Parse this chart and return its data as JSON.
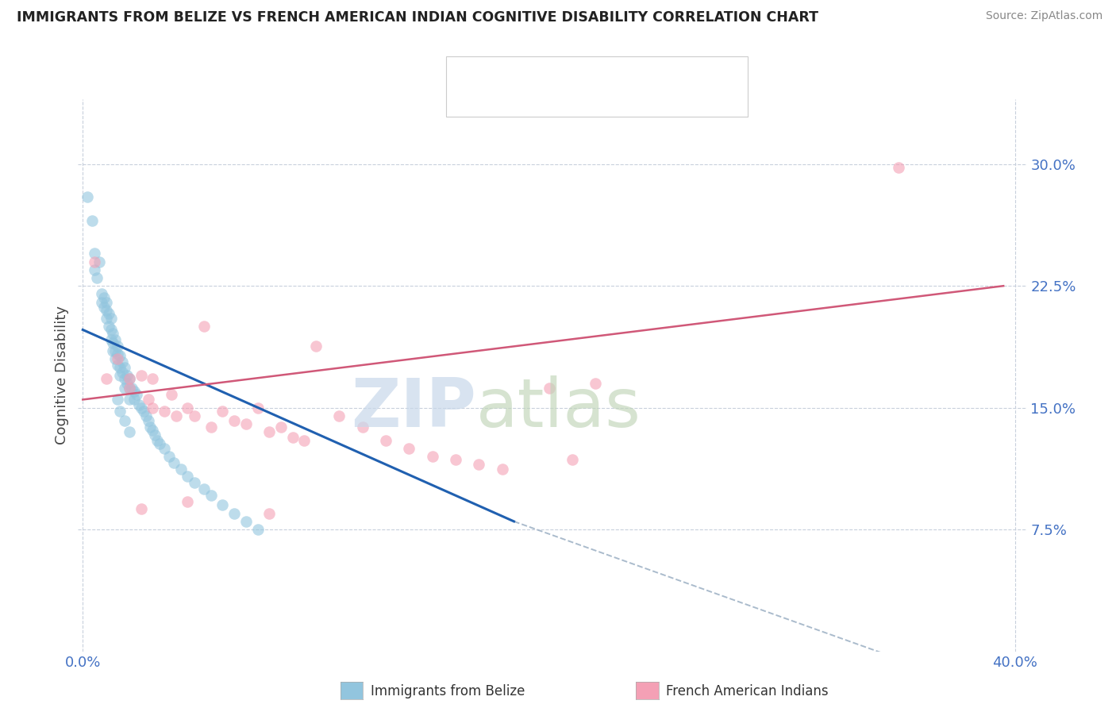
{
  "title": "IMMIGRANTS FROM BELIZE VS FRENCH AMERICAN INDIAN COGNITIVE DISABILITY CORRELATION CHART",
  "source": "Source: ZipAtlas.com",
  "ylabel": "Cognitive Disability",
  "ytick_labels": [
    "7.5%",
    "15.0%",
    "22.5%",
    "30.0%"
  ],
  "ytick_values": [
    0.075,
    0.15,
    0.225,
    0.3
  ],
  "xlim": [
    -0.002,
    0.405
  ],
  "ylim": [
    0.0,
    0.34
  ],
  "label1": "Immigrants from Belize",
  "label2": "French American Indians",
  "color1": "#92c5de",
  "color2": "#f4a0b5",
  "line_color1": "#2060b0",
  "line_color2": "#d05878",
  "blue_scatter_x": [
    0.002,
    0.004,
    0.005,
    0.005,
    0.006,
    0.007,
    0.008,
    0.008,
    0.009,
    0.009,
    0.01,
    0.01,
    0.01,
    0.011,
    0.011,
    0.012,
    0.012,
    0.012,
    0.013,
    0.013,
    0.013,
    0.014,
    0.014,
    0.014,
    0.015,
    0.015,
    0.015,
    0.016,
    0.016,
    0.016,
    0.017,
    0.017,
    0.018,
    0.018,
    0.018,
    0.019,
    0.019,
    0.02,
    0.02,
    0.02,
    0.021,
    0.022,
    0.022,
    0.023,
    0.024,
    0.025,
    0.026,
    0.027,
    0.028,
    0.029,
    0.03,
    0.031,
    0.032,
    0.033,
    0.035,
    0.037,
    0.039,
    0.042,
    0.045,
    0.048,
    0.052,
    0.055,
    0.06,
    0.065,
    0.07,
    0.075,
    0.015,
    0.016,
    0.018,
    0.02
  ],
  "blue_scatter_y": [
    0.28,
    0.265,
    0.245,
    0.235,
    0.23,
    0.24,
    0.22,
    0.215,
    0.218,
    0.212,
    0.215,
    0.21,
    0.205,
    0.208,
    0.2,
    0.205,
    0.198,
    0.192,
    0.196,
    0.19,
    0.185,
    0.192,
    0.185,
    0.18,
    0.188,
    0.183,
    0.176,
    0.182,
    0.175,
    0.17,
    0.178,
    0.172,
    0.175,
    0.168,
    0.162,
    0.17,
    0.165,
    0.168,
    0.162,
    0.155,
    0.162,
    0.16,
    0.155,
    0.158,
    0.152,
    0.15,
    0.148,
    0.145,
    0.142,
    0.138,
    0.136,
    0.133,
    0.13,
    0.128,
    0.125,
    0.12,
    0.116,
    0.112,
    0.108,
    0.104,
    0.1,
    0.096,
    0.09,
    0.085,
    0.08,
    0.075,
    0.155,
    0.148,
    0.142,
    0.135
  ],
  "pink_scatter_x": [
    0.005,
    0.01,
    0.015,
    0.02,
    0.02,
    0.025,
    0.028,
    0.03,
    0.03,
    0.035,
    0.038,
    0.04,
    0.045,
    0.048,
    0.052,
    0.055,
    0.06,
    0.065,
    0.07,
    0.075,
    0.08,
    0.085,
    0.09,
    0.095,
    0.1,
    0.11,
    0.12,
    0.13,
    0.14,
    0.15,
    0.16,
    0.17,
    0.18,
    0.2,
    0.21,
    0.22,
    0.025,
    0.045,
    0.08,
    0.35
  ],
  "pink_scatter_y": [
    0.24,
    0.168,
    0.18,
    0.162,
    0.168,
    0.17,
    0.155,
    0.15,
    0.168,
    0.148,
    0.158,
    0.145,
    0.15,
    0.145,
    0.2,
    0.138,
    0.148,
    0.142,
    0.14,
    0.15,
    0.135,
    0.138,
    0.132,
    0.13,
    0.188,
    0.145,
    0.138,
    0.13,
    0.125,
    0.12,
    0.118,
    0.115,
    0.112,
    0.162,
    0.118,
    0.165,
    0.088,
    0.092,
    0.085,
    0.298
  ],
  "blue_line_x": [
    0.0,
    0.185
  ],
  "blue_line_y": [
    0.198,
    0.08
  ],
  "pink_line_x": [
    0.0,
    0.395
  ],
  "pink_line_y": [
    0.155,
    0.225
  ],
  "dashed_line_x": [
    0.185,
    0.38
  ],
  "dashed_line_y": [
    0.08,
    -0.02
  ]
}
